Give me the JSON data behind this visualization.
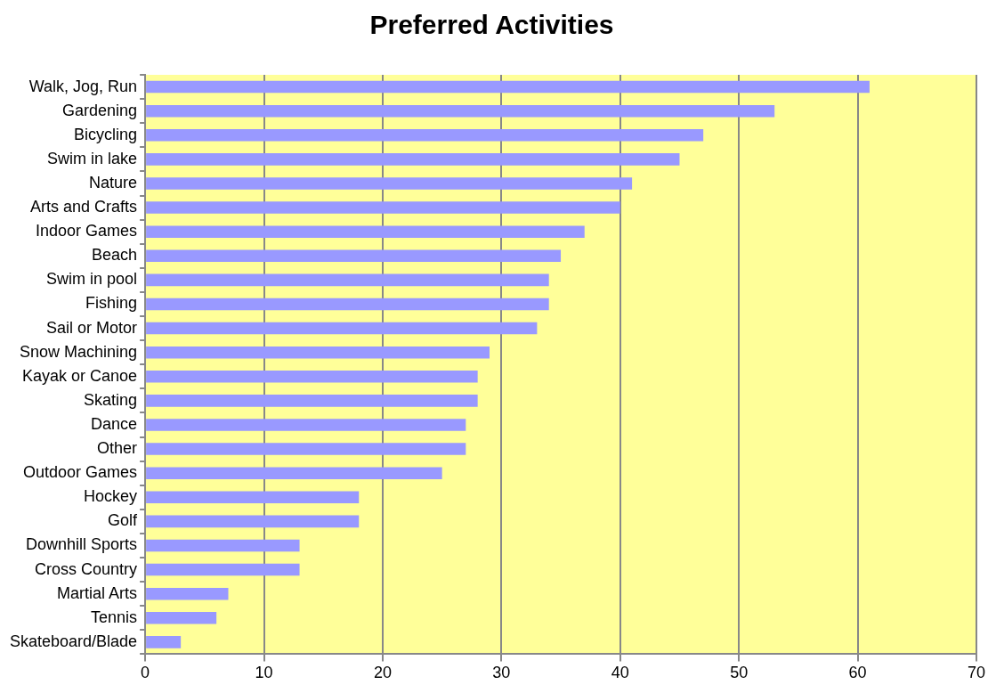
{
  "chart_data": {
    "type": "bar",
    "orientation": "horizontal",
    "title": "Preferred Activities",
    "categories": [
      "Walk, Jog, Run",
      "Gardening",
      "Bicycling",
      "Swim in lake",
      "Nature",
      "Arts and Crafts",
      "Indoor Games",
      "Beach",
      "Swim in pool",
      "Fishing",
      "Sail or Motor",
      "Snow Machining",
      "Kayak or Canoe",
      "Skating",
      "Dance",
      "Other",
      "Outdoor Games",
      "Hockey",
      "Golf",
      "Downhill Sports",
      "Cross Country",
      "Martial Arts",
      "Tennis",
      "Skateboard/Blade"
    ],
    "values": [
      61,
      53,
      47,
      45,
      41,
      40,
      37,
      35,
      34,
      34,
      33,
      29,
      28,
      28,
      27,
      27,
      25,
      18,
      18,
      13,
      13,
      7,
      6,
      3
    ],
    "color": "#9999ff",
    "xlim": [
      0,
      70
    ],
    "xticks": [
      0,
      10,
      20,
      30,
      40,
      50,
      60,
      70
    ],
    "grid": "x",
    "legend": false
  }
}
